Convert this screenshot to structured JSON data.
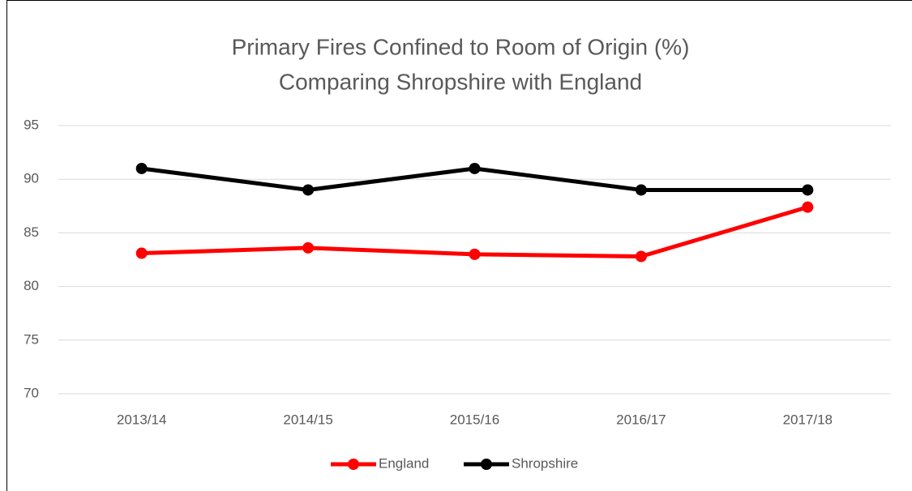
{
  "chart_data": {
    "type": "line",
    "title": "Primary Fires Confined to Room of Origin (%)",
    "subtitle": "Comparing Shropshire with England",
    "categories": [
      "2013/14",
      "2014/15",
      "2015/16",
      "2016/17",
      "2017/18"
    ],
    "series": [
      {
        "name": "England",
        "color": "#ff0000",
        "values": [
          83.1,
          83.6,
          83.0,
          82.8,
          87.4
        ]
      },
      {
        "name": "Shropshire",
        "color": "#000000",
        "values": [
          91,
          89,
          91,
          89,
          89
        ]
      }
    ],
    "ylim": [
      70,
      95
    ],
    "yticks": [
      70,
      75,
      80,
      85,
      90,
      95
    ],
    "grid": true,
    "legend": "bottom"
  }
}
